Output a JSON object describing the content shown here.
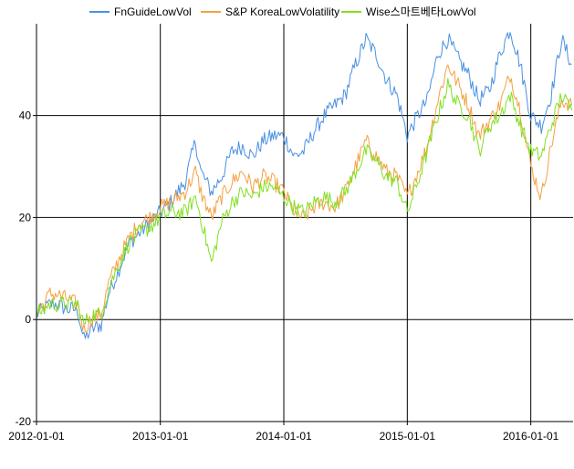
{
  "chart_data": {
    "type": "line",
    "title": "",
    "xlabel": "",
    "ylabel": "",
    "grid": true,
    "legend_position": "top",
    "x_ticks": [
      "2012-01-01",
      "2013-01-01",
      "2014-01-01",
      "2015-01-01",
      "2016-01-01"
    ],
    "y_ticks": [
      -20,
      0,
      20,
      40
    ],
    "xlim": [
      "2012-01-01",
      "2016-05-05"
    ],
    "ylim": [
      -20,
      58
    ],
    "series": [
      {
        "name": "FnGuideLowVol",
        "color": "#4a90e2",
        "points": [
          [
            "2012-01-01",
            1
          ],
          [
            "2012-01-20",
            2
          ],
          [
            "2012-02-10",
            3
          ],
          [
            "2012-03-01",
            3
          ],
          [
            "2012-04-01",
            2
          ],
          [
            "2012-05-01",
            2
          ],
          [
            "2012-05-20",
            -4
          ],
          [
            "2012-06-10",
            -2
          ],
          [
            "2012-07-10",
            -1
          ],
          [
            "2012-08-01",
            5
          ],
          [
            "2012-09-01",
            10
          ],
          [
            "2012-10-01",
            15
          ],
          [
            "2012-11-01",
            17
          ],
          [
            "2012-12-01",
            19
          ],
          [
            "2013-01-01",
            21
          ],
          [
            "2013-02-01",
            23
          ],
          [
            "2013-03-15",
            27
          ],
          [
            "2013-04-15",
            35
          ],
          [
            "2013-05-01",
            29
          ],
          [
            "2013-06-01",
            25
          ],
          [
            "2013-07-01",
            28
          ],
          [
            "2013-08-01",
            33
          ],
          [
            "2013-09-01",
            34
          ],
          [
            "2013-10-01",
            32
          ],
          [
            "2013-11-01",
            35
          ],
          [
            "2013-12-01",
            36
          ],
          [
            "2014-01-01",
            36
          ],
          [
            "2014-02-01",
            32
          ],
          [
            "2014-03-01",
            33
          ],
          [
            "2014-04-01",
            37
          ],
          [
            "2014-05-01",
            40
          ],
          [
            "2014-06-01",
            42
          ],
          [
            "2014-07-01",
            44
          ],
          [
            "2014-08-01",
            50
          ],
          [
            "2014-09-01",
            55
          ],
          [
            "2014-10-01",
            52
          ],
          [
            "2014-11-01",
            47
          ],
          [
            "2014-12-01",
            44
          ],
          [
            "2015-01-01",
            36
          ],
          [
            "2015-02-01",
            40
          ],
          [
            "2015-03-01",
            43
          ],
          [
            "2015-04-01",
            52
          ],
          [
            "2015-05-01",
            55
          ],
          [
            "2015-06-01",
            51
          ],
          [
            "2015-07-01",
            48
          ],
          [
            "2015-08-01",
            43
          ],
          [
            "2015-09-01",
            45
          ],
          [
            "2015-10-01",
            52
          ],
          [
            "2015-11-01",
            57
          ],
          [
            "2015-12-01",
            50
          ],
          [
            "2016-01-01",
            40
          ],
          [
            "2016-02-01",
            38
          ],
          [
            "2016-03-01",
            44
          ],
          [
            "2016-04-01",
            55
          ],
          [
            "2016-05-01",
            50
          ]
        ]
      },
      {
        "name": "S&P KoreaLowVolatility",
        "color": "#f5a040",
        "points": [
          [
            "2012-01-01",
            1
          ],
          [
            "2012-01-20",
            3
          ],
          [
            "2012-02-10",
            5
          ],
          [
            "2012-03-01",
            5
          ],
          [
            "2012-04-01",
            4
          ],
          [
            "2012-05-01",
            3
          ],
          [
            "2012-05-20",
            -2
          ],
          [
            "2012-06-10",
            0
          ],
          [
            "2012-07-10",
            1
          ],
          [
            "2012-08-01",
            7
          ],
          [
            "2012-09-01",
            12
          ],
          [
            "2012-10-01",
            16
          ],
          [
            "2012-11-01",
            19
          ],
          [
            "2012-12-01",
            20
          ],
          [
            "2013-01-01",
            22
          ],
          [
            "2013-02-01",
            23
          ],
          [
            "2013-03-15",
            25
          ],
          [
            "2013-04-15",
            29
          ],
          [
            "2013-05-01",
            25
          ],
          [
            "2013-06-01",
            20
          ],
          [
            "2013-07-01",
            24
          ],
          [
            "2013-08-01",
            27
          ],
          [
            "2013-09-01",
            29
          ],
          [
            "2013-10-01",
            26
          ],
          [
            "2013-11-01",
            28
          ],
          [
            "2013-12-01",
            27
          ],
          [
            "2014-01-01",
            25
          ],
          [
            "2014-02-01",
            21
          ],
          [
            "2014-03-01",
            20
          ],
          [
            "2014-04-01",
            22
          ],
          [
            "2014-05-01",
            23
          ],
          [
            "2014-06-01",
            22
          ],
          [
            "2014-07-01",
            25
          ],
          [
            "2014-08-01",
            30
          ],
          [
            "2014-09-01",
            35
          ],
          [
            "2014-10-01",
            32
          ],
          [
            "2014-11-01",
            29
          ],
          [
            "2014-12-01",
            28
          ],
          [
            "2015-01-01",
            24
          ],
          [
            "2015-02-01",
            29
          ],
          [
            "2015-03-01",
            34
          ],
          [
            "2015-04-01",
            43
          ],
          [
            "2015-05-01",
            50
          ],
          [
            "2015-06-01",
            46
          ],
          [
            "2015-07-01",
            42
          ],
          [
            "2015-08-01",
            36
          ],
          [
            "2015-09-01",
            39
          ],
          [
            "2015-10-01",
            42
          ],
          [
            "2015-11-01",
            48
          ],
          [
            "2015-12-01",
            41
          ],
          [
            "2016-01-01",
            30
          ],
          [
            "2016-02-01",
            24
          ],
          [
            "2016-03-01",
            34
          ],
          [
            "2016-04-01",
            43
          ],
          [
            "2016-05-01",
            42
          ]
        ]
      },
      {
        "name": "Wise스마트베타LowVol",
        "color": "#80e020",
        "points": [
          [
            "2012-01-01",
            1
          ],
          [
            "2012-01-20",
            2
          ],
          [
            "2012-02-10",
            3
          ],
          [
            "2012-03-01",
            3
          ],
          [
            "2012-04-01",
            3
          ],
          [
            "2012-05-01",
            3
          ],
          [
            "2012-05-20",
            -1
          ],
          [
            "2012-06-10",
            1
          ],
          [
            "2012-07-10",
            1
          ],
          [
            "2012-08-01",
            6
          ],
          [
            "2012-09-01",
            11
          ],
          [
            "2012-10-01",
            15
          ],
          [
            "2012-11-01",
            17
          ],
          [
            "2012-12-01",
            18
          ],
          [
            "2013-01-01",
            20
          ],
          [
            "2013-02-01",
            21
          ],
          [
            "2013-03-15",
            21
          ],
          [
            "2013-04-15",
            24
          ],
          [
            "2013-05-01",
            20
          ],
          [
            "2013-06-01",
            11
          ],
          [
            "2013-07-01",
            19
          ],
          [
            "2013-08-01",
            23
          ],
          [
            "2013-09-01",
            25
          ],
          [
            "2013-10-01",
            24
          ],
          [
            "2013-11-01",
            26
          ],
          [
            "2013-12-01",
            26
          ],
          [
            "2014-01-01",
            24
          ],
          [
            "2014-02-01",
            22
          ],
          [
            "2014-03-01",
            21
          ],
          [
            "2014-04-01",
            23
          ],
          [
            "2014-05-01",
            24
          ],
          [
            "2014-06-01",
            23
          ],
          [
            "2014-07-01",
            25
          ],
          [
            "2014-08-01",
            29
          ],
          [
            "2014-09-01",
            33
          ],
          [
            "2014-10-01",
            31
          ],
          [
            "2014-11-01",
            28
          ],
          [
            "2014-12-01",
            27
          ],
          [
            "2015-01-01",
            21
          ],
          [
            "2015-02-01",
            27
          ],
          [
            "2015-03-01",
            33
          ],
          [
            "2015-04-01",
            40
          ],
          [
            "2015-05-01",
            46
          ],
          [
            "2015-06-01",
            42
          ],
          [
            "2015-07-01",
            40
          ],
          [
            "2015-08-01",
            33
          ],
          [
            "2015-09-01",
            38
          ],
          [
            "2015-10-01",
            40
          ],
          [
            "2015-11-01",
            44
          ],
          [
            "2015-12-01",
            38
          ],
          [
            "2016-01-01",
            33
          ],
          [
            "2016-02-01",
            32
          ],
          [
            "2016-03-01",
            38
          ],
          [
            "2016-04-01",
            44
          ],
          [
            "2016-05-01",
            41
          ]
        ]
      }
    ]
  }
}
